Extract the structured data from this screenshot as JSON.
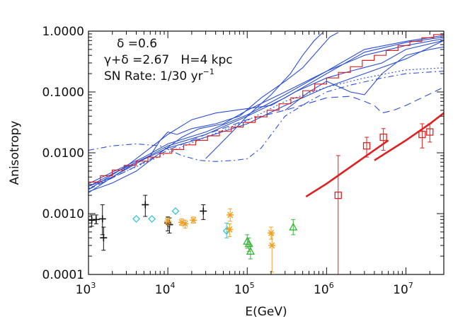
{
  "chart_data": {
    "type": "line",
    "title": "",
    "xlabel": "E(GeV)",
    "ylabel": "Anisotropy",
    "x_scale": "log",
    "y_scale": "log",
    "xlim": [
      1000,
      30000000
    ],
    "ylim": [
      0.0001,
      1.0
    ],
    "grid": false,
    "x_ticks": [
      {
        "value": 1000,
        "base": "10",
        "exp": "3"
      },
      {
        "value": 10000,
        "base": "10",
        "exp": "4"
      },
      {
        "value": 100000,
        "base": "10",
        "exp": "5"
      },
      {
        "value": 1000000,
        "base": "10",
        "exp": "6"
      },
      {
        "value": 10000000,
        "base": "10",
        "exp": "7"
      }
    ],
    "y_ticks": [
      {
        "value": 1.0,
        "label": "1.0000"
      },
      {
        "value": 0.1,
        "label": "0.1000"
      },
      {
        "value": 0.01,
        "label": "0.0100"
      },
      {
        "value": 0.001,
        "label": "0.0010"
      },
      {
        "value": 0.0001,
        "label": "0.0001"
      }
    ],
    "annotations": {
      "line1": "δ =0.6",
      "line2": "γ+δ =2.67   H=4 kpc",
      "line3_prefix": "SN Rate: 1/30 yr",
      "line3_sup": "−1"
    },
    "colors": {
      "model": "#2b4fd8",
      "mean": "#e02020",
      "black": "#111111",
      "cyan": "#33c4d8",
      "orange": "#f0a020",
      "green": "#33b833",
      "red": "#e02020"
    },
    "series": [
      {
        "style": "solid",
        "points": [
          [
            1000,
            0.0022
          ],
          [
            2000,
            0.004
          ],
          [
            5000,
            0.0078
          ],
          [
            10000,
            0.012
          ],
          [
            30000,
            0.018
          ],
          [
            100000,
            0.03
          ],
          [
            300000,
            0.06
          ],
          [
            1000000,
            0.12
          ],
          [
            3000000,
            0.2
          ],
          [
            10000000,
            0.35
          ],
          [
            30000000,
            0.7
          ]
        ]
      },
      {
        "style": "solid",
        "points": [
          [
            1000,
            0.0028
          ],
          [
            2000,
            0.0045
          ],
          [
            5000,
            0.008
          ],
          [
            10000,
            0.013
          ],
          [
            30000,
            0.02
          ],
          [
            100000,
            0.04
          ],
          [
            300000,
            0.08
          ],
          [
            1000000,
            0.2
          ],
          [
            3000000,
            0.45
          ],
          [
            10000000,
            0.65
          ],
          [
            30000000,
            0.8
          ]
        ]
      },
      {
        "style": "solid",
        "points": [
          [
            1000,
            0.0031
          ],
          [
            2000,
            0.0048
          ],
          [
            5000,
            0.0085
          ],
          [
            10000,
            0.014
          ],
          [
            30000,
            0.022
          ],
          [
            100000,
            0.042
          ],
          [
            300000,
            0.09
          ],
          [
            1000000,
            0.22
          ],
          [
            3000000,
            0.5
          ],
          [
            10000000,
            0.68
          ],
          [
            30000000,
            0.85
          ]
        ]
      },
      {
        "style": "solid",
        "points": [
          [
            1000,
            0.0023
          ],
          [
            2000,
            0.0032
          ],
          [
            4000,
            0.005
          ],
          [
            8000,
            0.01
          ],
          [
            15000,
            0.018
          ],
          [
            25000,
            0.025
          ],
          [
            50000,
            0.03
          ],
          [
            100000,
            0.05
          ],
          [
            300000,
            0.1
          ],
          [
            1000000,
            0.22
          ],
          [
            3000000,
            0.4
          ],
          [
            10000000,
            0.58
          ],
          [
            30000000,
            0.75
          ]
        ]
      },
      {
        "style": "solid",
        "points": [
          [
            1000,
            0.0025
          ],
          [
            3000,
            0.006
          ],
          [
            6000,
            0.012
          ],
          [
            10000,
            0.02
          ],
          [
            20000,
            0.035
          ],
          [
            40000,
            0.045
          ],
          [
            70000,
            0.05
          ],
          [
            120000,
            0.055
          ],
          [
            200000,
            0.06
          ],
          [
            400000,
            0.1
          ],
          [
            1000000,
            0.17
          ],
          [
            2000000,
            0.22
          ],
          [
            5000000,
            0.3
          ],
          [
            10000000,
            0.5
          ],
          [
            30000000,
            0.7
          ]
        ]
      },
      {
        "style": "solid",
        "points": [
          [
            1000,
            0.0028
          ],
          [
            2000,
            0.004
          ],
          [
            4000,
            0.007
          ],
          [
            6000,
            0.009
          ],
          [
            8000,
            0.016
          ],
          [
            10000,
            0.022
          ],
          [
            13000,
            0.02
          ],
          [
            20000,
            0.025
          ],
          [
            40000,
            0.03
          ],
          [
            80000,
            0.04
          ],
          [
            150000,
            0.08
          ],
          [
            300000,
            0.15
          ],
          [
            500000,
            0.25
          ],
          [
            800000,
            0.5
          ],
          [
            1100000,
            0.8
          ],
          [
            1400000,
            0.95
          ]
        ]
      },
      {
        "style": "solid",
        "points": [
          [
            30000,
            0.008
          ],
          [
            60000,
            0.02
          ],
          [
            100000,
            0.04
          ],
          [
            200000,
            0.09
          ],
          [
            350000,
            0.2
          ],
          [
            500000,
            0.4
          ],
          [
            700000,
            0.7
          ],
          [
            900000,
            0.95
          ]
        ]
      },
      {
        "style": "solid",
        "points": [
          [
            300000,
            0.05
          ],
          [
            600000,
            0.1
          ],
          [
            1000000,
            0.15
          ],
          [
            2000000,
            0.1
          ],
          [
            3000000,
            0.09
          ],
          [
            5000000,
            0.2
          ],
          [
            10000000,
            0.4
          ],
          [
            20000000,
            0.5
          ],
          [
            30000000,
            0.55
          ]
        ]
      },
      {
        "style": "dashed",
        "points": [
          [
            1000,
            0.0025
          ],
          [
            3000,
            0.005
          ],
          [
            10000,
            0.011
          ],
          [
            30000,
            0.02
          ],
          [
            100000,
            0.035
          ],
          [
            300000,
            0.05
          ],
          [
            1000000,
            0.08
          ],
          [
            2000000,
            0.085
          ],
          [
            3000000,
            0.07
          ],
          [
            4000000,
            0.06
          ],
          [
            5000000,
            0.045
          ],
          [
            7000000,
            0.05
          ],
          [
            10000000,
            0.06
          ],
          [
            30000000,
            0.12
          ]
        ]
      },
      {
        "style": "dashdot",
        "points": [
          [
            1000,
            0.011
          ],
          [
            2000,
            0.013
          ],
          [
            4000,
            0.014
          ],
          [
            8000,
            0.013
          ],
          [
            15000,
            0.009
          ],
          [
            25000,
            0.0075
          ],
          [
            40000,
            0.0072
          ],
          [
            70000,
            0.0075
          ],
          [
            100000,
            0.008
          ],
          [
            150000,
            0.012
          ],
          [
            300000,
            0.04
          ],
          [
            600000,
            0.07
          ],
          [
            1000000,
            0.1
          ],
          [
            2000000,
            0.13
          ],
          [
            5000000,
            0.17
          ],
          [
            10000000,
            0.2
          ],
          [
            30000000,
            0.22
          ]
        ]
      },
      {
        "style": "dotted",
        "points": [
          [
            1000,
            0.0026
          ],
          [
            3000,
            0.005
          ],
          [
            10000,
            0.01
          ],
          [
            30000,
            0.018
          ],
          [
            100000,
            0.034
          ],
          [
            300000,
            0.07
          ],
          [
            1000000,
            0.12
          ],
          [
            3000000,
            0.17
          ],
          [
            10000000,
            0.23
          ],
          [
            30000000,
            0.25
          ]
        ]
      }
    ],
    "mean_step": {
      "edges": [
        1000,
        1412,
        1995,
        2818,
        3981,
        5623,
        7943,
        11220,
        15849,
        22387,
        31623,
        44668,
        63096,
        89125,
        125893,
        177828,
        251189,
        354813,
        501187,
        707946,
        1000000,
        1412538,
        1995262,
        2818383,
        3981072,
        5623413,
        7943282,
        11220185,
        15848932,
        22387211,
        30000000
      ],
      "values": [
        0.0033,
        0.0042,
        0.0052,
        0.0062,
        0.0073,
        0.0085,
        0.0098,
        0.0113,
        0.0135,
        0.016,
        0.019,
        0.0225,
        0.0265,
        0.0315,
        0.039,
        0.05,
        0.064,
        0.08,
        0.105,
        0.135,
        0.17,
        0.21,
        0.26,
        0.33,
        0.4,
        0.48,
        0.58,
        0.68,
        0.78,
        0.88
      ]
    },
    "red_lines": [
      {
        "points": [
          [
            550000,
            0.0019
          ],
          [
            1000000,
            0.0031
          ],
          [
            3000000,
            0.0085
          ],
          [
            6000000,
            0.016
          ]
        ]
      },
      {
        "points": [
          [
            4000000,
            0.0075
          ],
          [
            10000000,
            0.016
          ],
          [
            20000000,
            0.03
          ],
          [
            30000000,
            0.045
          ]
        ]
      }
    ],
    "data_groups": [
      {
        "marker": "plus",
        "color": "#111111",
        "points": [
          {
            "x": 1100,
            "y": 0.00078,
            "lo": 0.00062,
            "hi": 0.00095
          },
          {
            "x": 1250,
            "y": 0.0008,
            "lo": 0.00068,
            "hi": 0.00095
          },
          {
            "x": 1500,
            "y": 0.00082,
            "lo": 0.00045,
            "hi": 0.0014
          },
          {
            "x": 1550,
            "y": 0.0004,
            "lo": 0.00025,
            "hi": 0.0006
          },
          {
            "x": 5200,
            "y": 0.0014,
            "lo": 0.0009,
            "hi": 0.002
          },
          {
            "x": 10000,
            "y": 0.0007,
            "lo": 0.00052,
            "hi": 0.00088
          },
          {
            "x": 10500,
            "y": 0.00066,
            "lo": 0.00048,
            "hi": 0.00085
          },
          {
            "x": 28000,
            "y": 0.0011,
            "lo": 0.0008,
            "hi": 0.0014
          }
        ]
      },
      {
        "marker": "diamond",
        "color": "#33c4d8",
        "points": [
          {
            "x": 4000,
            "y": 0.00082
          },
          {
            "x": 6300,
            "y": 0.00082
          },
          {
            "x": 12500,
            "y": 0.0011
          },
          {
            "x": 55000,
            "y": 0.00052,
            "lo": 0.0004,
            "hi": 0.0007
          }
        ]
      },
      {
        "marker": "asterisk",
        "color": "#f0a020",
        "points": [
          {
            "x": 10000,
            "y": 0.00075,
            "lo": 0.00065,
            "hi": 0.00085
          },
          {
            "x": 15000,
            "y": 0.00072,
            "lo": 0.00064,
            "hi": 0.00082
          },
          {
            "x": 16500,
            "y": 0.00068,
            "lo": 0.00058,
            "hi": 0.00078
          },
          {
            "x": 21000,
            "y": 0.00078,
            "lo": 0.0007,
            "hi": 0.00088
          },
          {
            "x": 60000,
            "y": 0.00055,
            "lo": 0.00042,
            "hi": 0.00068
          },
          {
            "x": 61000,
            "y": 0.00095,
            "lo": 0.00075,
            "hi": 0.0012
          },
          {
            "x": 200000,
            "y": 0.00048,
            "lo": 0.00038,
            "hi": 0.0006
          },
          {
            "x": 205000,
            "y": 0.0003,
            "lo": 0.00011,
            "hi": 0.00045
          }
        ]
      },
      {
        "marker": "triangle",
        "color": "#33b833",
        "points": [
          {
            "x": 100000,
            "y": 0.00035,
            "lo": 0.00027,
            "hi": 0.00045
          },
          {
            "x": 105000,
            "y": 0.00032,
            "lo": 0.00024,
            "hi": 0.0004
          },
          {
            "x": 110000,
            "y": 0.00024,
            "lo": 0.00018,
            "hi": 0.0003
          },
          {
            "x": 380000,
            "y": 0.0006,
            "lo": 0.00045,
            "hi": 0.0008
          }
        ]
      },
      {
        "marker": "square",
        "color": "#e02020",
        "points": [
          {
            "x": 1400000,
            "y": 0.002,
            "lo": 0.0001,
            "hi": 0.009
          },
          {
            "x": 3200000,
            "y": 0.013,
            "lo": 0.0085,
            "hi": 0.018
          },
          {
            "x": 5200000,
            "y": 0.018,
            "lo": 0.011,
            "hi": 0.025
          },
          {
            "x": 16000000,
            "y": 0.02,
            "lo": 0.012,
            "hi": 0.03
          },
          {
            "x": 20000000,
            "y": 0.022,
            "lo": 0.015,
            "hi": 0.03
          }
        ]
      }
    ]
  }
}
